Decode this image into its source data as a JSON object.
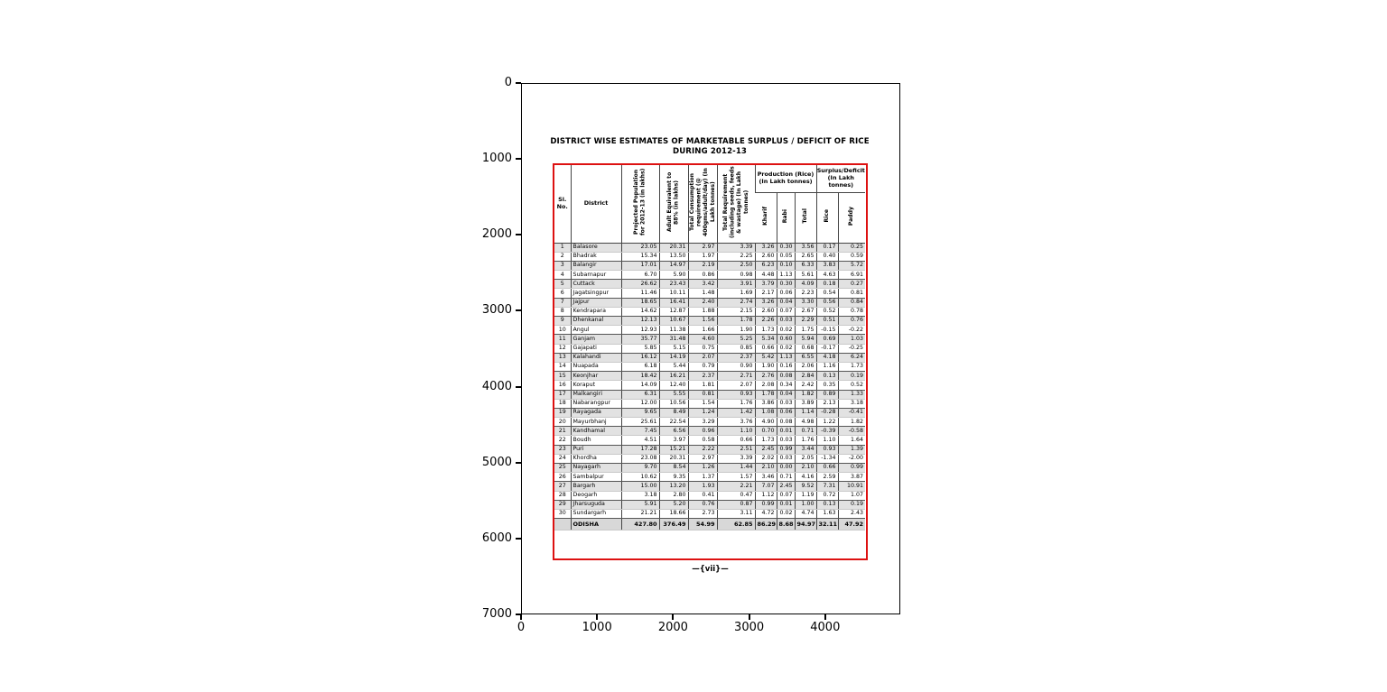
{
  "figure": {
    "title_line1": "DISTRICT WISE ESTIMATES OF MARKETABLE SURPLUS / DEFICIT OF RICE",
    "title_line2": "DURING 2012-13",
    "page_mark": "—{vii}—"
  },
  "colors": {
    "table_border": "#dd1111",
    "row_shade": "#e2e2e2",
    "axes": "#000000"
  },
  "axis": {
    "x_ticks": [
      "0",
      "1000",
      "2000",
      "3000",
      "4000"
    ],
    "y_ticks": [
      "0",
      "1000",
      "2000",
      "3000",
      "4000",
      "5000",
      "6000",
      "7000"
    ]
  },
  "table": {
    "headers": {
      "sl_no": "Sl. No.",
      "district": "District",
      "population": "Projected Population for 2012-13 (in lakhs)",
      "adult": "Adult Equivalent to 88% (in lakhs)",
      "consumption": "Total Consumption requirement (@ 400gms/adult/day) (In Lakh tonnes)",
      "requirement": "Total Requirement (including seeds, feeds & wastage) (In Lakh tonnes)",
      "production_group": "Production (Rice) (In Lakh tonnes)",
      "kharif": "Kharif",
      "rabi": "Rabi",
      "total": "Total",
      "surplus_group": "Surplus/Deficit (In Lakh tonnes)",
      "rice": "Rice",
      "paddy": "Paddy"
    },
    "rows": [
      [
        "1",
        "Balasore",
        "23.05",
        "20.31",
        "2.97",
        "3.39",
        "3.26",
        "0.30",
        "3.56",
        "0.17",
        "0.25"
      ],
      [
        "2",
        "Bhadrak",
        "15.34",
        "13.50",
        "1.97",
        "2.25",
        "2.60",
        "0.05",
        "2.65",
        "0.40",
        "0.59"
      ],
      [
        "3",
        "Balangir",
        "17.01",
        "14.97",
        "2.19",
        "2.50",
        "6.23",
        "0.10",
        "6.33",
        "3.83",
        "5.72"
      ],
      [
        "4",
        "Subarnapur",
        "6.70",
        "5.90",
        "0.86",
        "0.98",
        "4.48",
        "1.13",
        "5.61",
        "4.63",
        "6.91"
      ],
      [
        "5",
        "Cuttack",
        "26.62",
        "23.43",
        "3.42",
        "3.91",
        "3.79",
        "0.30",
        "4.09",
        "0.18",
        "0.27"
      ],
      [
        "6",
        "Jagatsingpur",
        "11.46",
        "10.11",
        "1.48",
        "1.69",
        "2.17",
        "0.06",
        "2.23",
        "0.54",
        "0.81"
      ],
      [
        "7",
        "Jajpur",
        "18.65",
        "16.41",
        "2.40",
        "2.74",
        "3.26",
        "0.04",
        "3.30",
        "0.56",
        "0.84"
      ],
      [
        "8",
        "Kendrapara",
        "14.62",
        "12.87",
        "1.88",
        "2.15",
        "2.60",
        "0.07",
        "2.67",
        "0.52",
        "0.78"
      ],
      [
        "9",
        "Dhenkanal",
        "12.13",
        "10.67",
        "1.56",
        "1.78",
        "2.26",
        "0.03",
        "2.29",
        "0.51",
        "0.76"
      ],
      [
        "10",
        "Angul",
        "12.93",
        "11.38",
        "1.66",
        "1.90",
        "1.73",
        "0.02",
        "1.75",
        "-0.15",
        "-0.22"
      ],
      [
        "11",
        "Ganjam",
        "35.77",
        "31.48",
        "4.60",
        "5.25",
        "5.34",
        "0.60",
        "5.94",
        "0.69",
        "1.03"
      ],
      [
        "12",
        "Gajapati",
        "5.85",
        "5.15",
        "0.75",
        "0.85",
        "0.66",
        "0.02",
        "0.68",
        "-0.17",
        "-0.25"
      ],
      [
        "13",
        "Kalahandi",
        "16.12",
        "14.19",
        "2.07",
        "2.37",
        "5.42",
        "1.13",
        "6.55",
        "4.18",
        "6.24"
      ],
      [
        "14",
        "Nuapada",
        "6.18",
        "5.44",
        "0.79",
        "0.90",
        "1.90",
        "0.16",
        "2.06",
        "1.16",
        "1.73"
      ],
      [
        "15",
        "Keonjhar",
        "18.42",
        "16.21",
        "2.37",
        "2.71",
        "2.76",
        "0.08",
        "2.84",
        "0.13",
        "0.19"
      ],
      [
        "16",
        "Koraput",
        "14.09",
        "12.40",
        "1.81",
        "2.07",
        "2.08",
        "0.34",
        "2.42",
        "0.35",
        "0.52"
      ],
      [
        "17",
        "Malkangiri",
        "6.31",
        "5.55",
        "0.81",
        "0.93",
        "1.78",
        "0.04",
        "1.82",
        "0.89",
        "1.33"
      ],
      [
        "18",
        "Nabarangpur",
        "12.00",
        "10.56",
        "1.54",
        "1.76",
        "3.86",
        "0.03",
        "3.89",
        "2.13",
        "3.18"
      ],
      [
        "19",
        "Rayagada",
        "9.65",
        "8.49",
        "1.24",
        "1.42",
        "1.08",
        "0.06",
        "1.14",
        "-0.28",
        "-0.41"
      ],
      [
        "20",
        "Mayurbhanj",
        "25.61",
        "22.54",
        "3.29",
        "3.76",
        "4.90",
        "0.08",
        "4.98",
        "1.22",
        "1.82"
      ],
      [
        "21",
        "Kandhamal",
        "7.45",
        "6.56",
        "0.96",
        "1.10",
        "0.70",
        "0.01",
        "0.71",
        "-0.39",
        "-0.58"
      ],
      [
        "22",
        "Boudh",
        "4.51",
        "3.97",
        "0.58",
        "0.66",
        "1.73",
        "0.03",
        "1.76",
        "1.10",
        "1.64"
      ],
      [
        "23",
        "Puri",
        "17.28",
        "15.21",
        "2.22",
        "2.51",
        "2.45",
        "0.99",
        "3.44",
        "0.93",
        "1.39"
      ],
      [
        "24",
        "Khordha",
        "23.08",
        "20.31",
        "2.97",
        "3.39",
        "2.02",
        "0.03",
        "2.05",
        "-1.34",
        "-2.00"
      ],
      [
        "25",
        "Nayagarh",
        "9.70",
        "8.54",
        "1.26",
        "1.44",
        "2.10",
        "0.00",
        "2.10",
        "0.66",
        "0.99"
      ],
      [
        "26",
        "Sambalpur",
        "10.62",
        "9.35",
        "1.37",
        "1.57",
        "3.46",
        "0.71",
        "4.16",
        "2.59",
        "3.87"
      ],
      [
        "27",
        "Bargarh",
        "15.00",
        "13.20",
        "1.93",
        "2.21",
        "7.07",
        "2.45",
        "9.52",
        "7.31",
        "10.91"
      ],
      [
        "28",
        "Deogarh",
        "3.18",
        "2.80",
        "0.41",
        "0.47",
        "1.12",
        "0.07",
        "1.19",
        "0.72",
        "1.07"
      ],
      [
        "29",
        "Jharsuguda",
        "5.91",
        "5.20",
        "0.76",
        "0.87",
        "0.99",
        "0.01",
        "1.00",
        "0.13",
        "0.19"
      ],
      [
        "30",
        "Sundargarh",
        "21.21",
        "18.66",
        "2.73",
        "3.11",
        "4.72",
        "0.02",
        "4.74",
        "1.63",
        "2.43"
      ]
    ],
    "total_row": [
      "",
      "ODISHA",
      "427.80",
      "376.49",
      "54.99",
      "62.85",
      "86.29",
      "8.68",
      "94.97",
      "32.11",
      "47.92"
    ]
  }
}
